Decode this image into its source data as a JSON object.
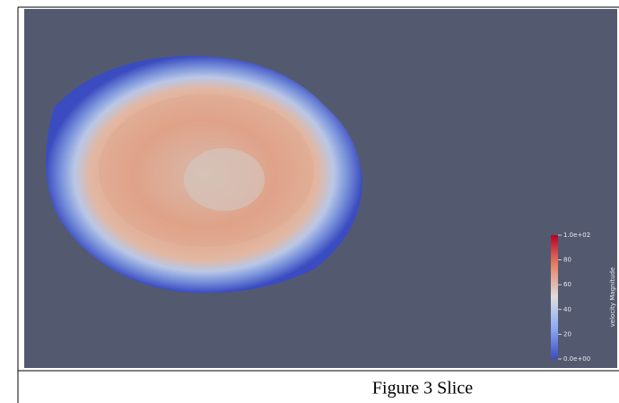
{
  "figure": {
    "caption": "Figure 3 Slice",
    "colorbar": {
      "title": "velocity Magnitude",
      "range": [
        0,
        100
      ],
      "ticks": [
        {
          "value": 100,
          "label": "1.0e+02"
        },
        80,
        60,
        40,
        20,
        {
          "value": 0,
          "label": "0.0e+00"
        }
      ]
    }
  }
}
